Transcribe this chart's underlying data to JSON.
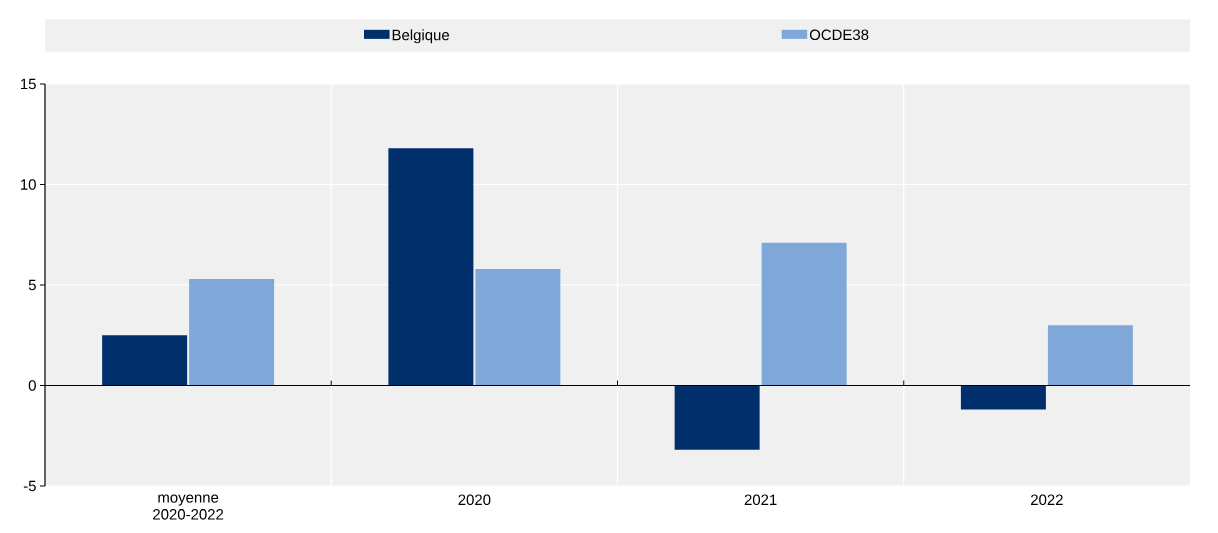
{
  "chart_data": {
    "type": "bar",
    "categories": [
      "moyenne 2020-2022",
      "2020",
      "2021",
      "2022"
    ],
    "series": [
      {
        "name": "Belgique",
        "color": "#002f6c",
        "values": [
          2.5,
          11.8,
          -3.2,
          -1.2
        ]
      },
      {
        "name": "OCDE38",
        "color": "#7fa8d9",
        "values": [
          5.3,
          5.8,
          7.1,
          3.0
        ]
      }
    ],
    "ylim": [
      -5,
      15
    ],
    "yticks": [
      -5,
      0,
      5,
      10,
      15
    ],
    "grid": true,
    "legend": "top"
  }
}
